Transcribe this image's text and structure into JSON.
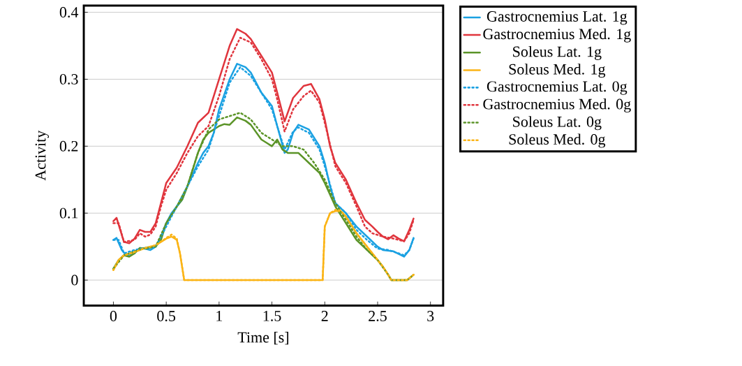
{
  "chart_data": {
    "type": "line",
    "xlabel": "Time [s]",
    "ylabel": "Activity",
    "xlim": [
      -0.28,
      3.12
    ],
    "ylim": [
      -0.038,
      0.41
    ],
    "xticks": [
      0,
      0.5,
      1,
      1.5,
      2,
      2.5,
      3
    ],
    "yticks": [
      0,
      0.1,
      0.2,
      0.3,
      0.4
    ],
    "grid": "y",
    "legend": "right",
    "marker": "none",
    "series": [
      {
        "name": "Gastrocnemius Lat. 1g",
        "color": "#1ba1e2",
        "line_style": "solid",
        "x": [
          0,
          0.03,
          0.08,
          0.12,
          0.2,
          0.25,
          0.3,
          0.35,
          0.4,
          0.45,
          0.5,
          0.55,
          0.6,
          0.65,
          0.7,
          0.8,
          0.85,
          0.9,
          0.95,
          1.0,
          1.1,
          1.17,
          1.25,
          1.3,
          1.4,
          1.5,
          1.55,
          1.62,
          1.65,
          1.7,
          1.75,
          1.85,
          1.95,
          2.0,
          2.05,
          2.1,
          2.2,
          2.3,
          2.4,
          2.5,
          2.55,
          2.65,
          2.75,
          2.8,
          2.84
        ],
        "values": [
          0.06,
          0.063,
          0.045,
          0.037,
          0.04,
          0.048,
          0.047,
          0.045,
          0.05,
          0.065,
          0.085,
          0.1,
          0.11,
          0.12,
          0.14,
          0.175,
          0.19,
          0.2,
          0.22,
          0.255,
          0.3,
          0.323,
          0.318,
          0.31,
          0.28,
          0.26,
          0.23,
          0.19,
          0.195,
          0.22,
          0.232,
          0.225,
          0.2,
          0.175,
          0.14,
          0.115,
          0.1,
          0.08,
          0.065,
          0.05,
          0.045,
          0.043,
          0.035,
          0.045,
          0.063
        ]
      },
      {
        "name": "Gastrocnemius Med. 1g",
        "color": "#e0353d",
        "line_style": "solid",
        "x": [
          0,
          0.03,
          0.1,
          0.15,
          0.2,
          0.25,
          0.3,
          0.35,
          0.4,
          0.45,
          0.5,
          0.6,
          0.7,
          0.8,
          0.9,
          1.0,
          1.1,
          1.17,
          1.25,
          1.3,
          1.4,
          1.5,
          1.55,
          1.62,
          1.7,
          1.8,
          1.87,
          1.95,
          2.0,
          2.05,
          2.1,
          2.2,
          2.3,
          2.38,
          2.45,
          2.5,
          2.55,
          2.6,
          2.65,
          2.7,
          2.75,
          2.8,
          2.84
        ],
        "values": [
          0.088,
          0.093,
          0.057,
          0.055,
          0.062,
          0.075,
          0.072,
          0.072,
          0.085,
          0.115,
          0.145,
          0.168,
          0.2,
          0.235,
          0.25,
          0.3,
          0.35,
          0.375,
          0.368,
          0.36,
          0.335,
          0.31,
          0.28,
          0.237,
          0.272,
          0.29,
          0.293,
          0.27,
          0.24,
          0.2,
          0.175,
          0.15,
          0.115,
          0.09,
          0.08,
          0.072,
          0.065,
          0.061,
          0.067,
          0.062,
          0.058,
          0.075,
          0.092
        ]
      },
      {
        "name": "Soleus Lat. 1g",
        "color": "#5b9428",
        "line_style": "solid",
        "x": [
          0,
          0.05,
          0.1,
          0.15,
          0.2,
          0.25,
          0.3,
          0.4,
          0.45,
          0.5,
          0.6,
          0.65,
          0.7,
          0.8,
          0.85,
          0.9,
          1.0,
          1.05,
          1.1,
          1.17,
          1.25,
          1.3,
          1.4,
          1.45,
          1.5,
          1.55,
          1.6,
          1.65,
          1.75,
          1.85,
          1.95,
          2.0,
          2.1,
          2.2,
          2.3,
          2.4,
          2.5,
          2.55,
          2.6,
          2.63,
          2.78,
          2.84
        ],
        "values": [
          0.017,
          0.03,
          0.037,
          0.035,
          0.04,
          0.048,
          0.047,
          0.05,
          0.06,
          0.085,
          0.11,
          0.12,
          0.14,
          0.19,
          0.21,
          0.22,
          0.23,
          0.233,
          0.232,
          0.243,
          0.238,
          0.232,
          0.21,
          0.205,
          0.2,
          0.21,
          0.195,
          0.19,
          0.19,
          0.175,
          0.16,
          0.145,
          0.11,
          0.085,
          0.06,
          0.045,
          0.03,
          0.02,
          0.008,
          0,
          0,
          0.008
        ]
      },
      {
        "name": "Soleus Med. 1g",
        "color": "#fbb416",
        "line_style": "solid",
        "x": [
          0,
          0.05,
          0.1,
          0.2,
          0.3,
          0.4,
          0.5,
          0.55,
          0.6,
          0.63,
          0.67,
          1.98,
          2.0,
          2.05,
          2.1,
          2.15,
          2.2,
          2.3,
          2.4,
          2.5,
          2.55,
          2.6,
          2.63,
          2.78,
          2.84
        ],
        "values": [
          0.015,
          0.03,
          0.037,
          0.042,
          0.048,
          0.052,
          0.062,
          0.065,
          0.06,
          0.04,
          0,
          0,
          0.08,
          0.1,
          0.103,
          0.103,
          0.095,
          0.07,
          0.05,
          0.03,
          0.02,
          0.008,
          0,
          0,
          0.008
        ]
      },
      {
        "name": "Gastrocnemius Lat. 0g",
        "color": "#1ba1e2",
        "line_style": "dotted",
        "x": [
          0,
          0.05,
          0.1,
          0.2,
          0.3,
          0.4,
          0.5,
          0.6,
          0.7,
          0.8,
          0.9,
          1.0,
          1.1,
          1.2,
          1.3,
          1.4,
          1.5,
          1.55,
          1.62,
          1.7,
          1.75,
          1.85,
          1.95,
          2.0,
          2.1,
          2.2,
          2.3,
          2.4,
          2.5,
          2.6,
          2.7,
          2.75,
          2.8,
          2.84
        ],
        "values": [
          0.06,
          0.06,
          0.04,
          0.045,
          0.048,
          0.05,
          0.08,
          0.11,
          0.14,
          0.17,
          0.195,
          0.245,
          0.295,
          0.318,
          0.305,
          0.28,
          0.255,
          0.23,
          0.195,
          0.222,
          0.228,
          0.22,
          0.195,
          0.17,
          0.115,
          0.1,
          0.075,
          0.06,
          0.047,
          0.045,
          0.04,
          0.037,
          0.045,
          0.062
        ]
      },
      {
        "name": "Gastrocnemius Med. 0g",
        "color": "#e0353d",
        "line_style": "dotted",
        "x": [
          0,
          0.05,
          0.1,
          0.2,
          0.25,
          0.3,
          0.35,
          0.4,
          0.45,
          0.5,
          0.6,
          0.7,
          0.8,
          0.9,
          1.0,
          1.1,
          1.2,
          1.3,
          1.4,
          1.5,
          1.55,
          1.62,
          1.7,
          1.8,
          1.87,
          1.95,
          2.0,
          2.1,
          2.2,
          2.3,
          2.38,
          2.45,
          2.55,
          2.65,
          2.75,
          2.8,
          2.84
        ],
        "values": [
          0.085,
          0.085,
          0.057,
          0.06,
          0.07,
          0.065,
          0.068,
          0.08,
          0.11,
          0.135,
          0.16,
          0.19,
          0.215,
          0.23,
          0.275,
          0.33,
          0.362,
          0.355,
          0.33,
          0.3,
          0.27,
          0.222,
          0.255,
          0.275,
          0.283,
          0.265,
          0.235,
          0.17,
          0.145,
          0.11,
          0.08,
          0.07,
          0.065,
          0.062,
          0.058,
          0.07,
          0.09
        ]
      },
      {
        "name": "Soleus Lat. 0g",
        "color": "#5b9428",
        "line_style": "dotted",
        "x": [
          0,
          0.1,
          0.2,
          0.3,
          0.4,
          0.5,
          0.6,
          0.7,
          0.8,
          0.9,
          1.0,
          1.1,
          1.2,
          1.3,
          1.4,
          1.5,
          1.6,
          1.7,
          1.8,
          1.9,
          2.0,
          2.1,
          2.2,
          2.3,
          2.4,
          2.5,
          2.6,
          2.63,
          2.78,
          2.84
        ],
        "values": [
          0.017,
          0.037,
          0.043,
          0.048,
          0.05,
          0.085,
          0.11,
          0.14,
          0.19,
          0.225,
          0.24,
          0.245,
          0.25,
          0.24,
          0.22,
          0.21,
          0.2,
          0.2,
          0.195,
          0.175,
          0.15,
          0.115,
          0.09,
          0.065,
          0.045,
          0.03,
          0.008,
          0,
          0,
          0.008
        ]
      },
      {
        "name": "Soleus Med. 0g",
        "color": "#fbb416",
        "line_style": "dotted",
        "x": [
          0,
          0.05,
          0.1,
          0.2,
          0.3,
          0.4,
          0.5,
          0.55,
          0.6,
          0.63,
          0.67,
          1.98,
          2.0,
          2.05,
          2.1,
          2.15,
          2.2,
          2.3,
          2.4,
          2.5,
          2.55,
          2.6,
          2.63,
          2.78,
          2.84
        ],
        "values": [
          0.015,
          0.03,
          0.037,
          0.042,
          0.048,
          0.052,
          0.063,
          0.068,
          0.062,
          0.04,
          0,
          0,
          0.08,
          0.1,
          0.105,
          0.104,
          0.095,
          0.07,
          0.05,
          0.03,
          0.02,
          0.008,
          0,
          0,
          0.008
        ]
      }
    ]
  }
}
